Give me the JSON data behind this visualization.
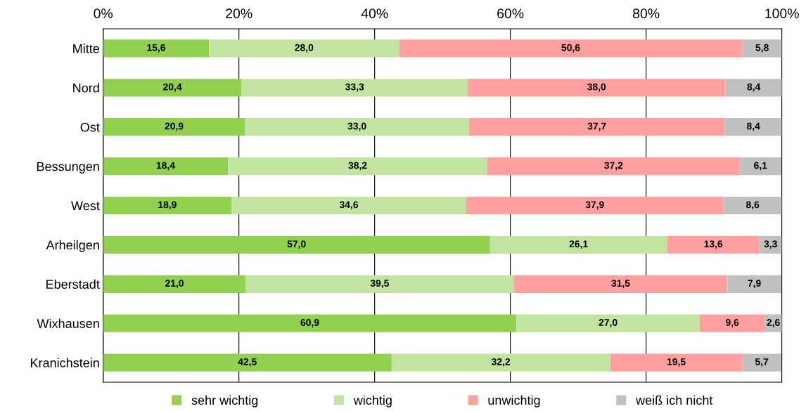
{
  "chart_data": {
    "type": "bar",
    "orientation": "horizontal",
    "stacked": true,
    "categories": [
      "Mitte",
      "Nord",
      "Ost",
      "Bessungen",
      "West",
      "Arheilgen",
      "Eberstadt",
      "Wixhausen",
      "Kranichstein"
    ],
    "series": [
      {
        "name": "sehr wichtig",
        "color": "#92d050",
        "values": [
          15.6,
          20.4,
          20.9,
          18.4,
          18.9,
          57.0,
          21.0,
          60.9,
          42.5
        ]
      },
      {
        "name": "wichtig",
        "color": "#c3e4a0",
        "values": [
          28.0,
          33.3,
          33.0,
          38.2,
          34.6,
          26.1,
          39.5,
          27.0,
          32.2
        ]
      },
      {
        "name": "unwichtig",
        "color": "#ff9f9f",
        "values": [
          50.6,
          38.0,
          37.7,
          37.2,
          37.9,
          13.6,
          31.5,
          9.6,
          19.5
        ]
      },
      {
        "name": "weiß ich nicht",
        "color": "#c0c0c0",
        "values": [
          5.8,
          8.4,
          8.4,
          6.1,
          8.6,
          3.3,
          7.9,
          2.6,
          5.7
        ]
      }
    ],
    "value_labels": [
      [
        "15,6",
        "20,4",
        "20,9",
        "18,4",
        "18,9",
        "57,0",
        "21,0",
        "60,9",
        "42,5"
      ],
      [
        "28,0",
        "33,3",
        "33,0",
        "38,2",
        "34,6",
        "26,1",
        "39,5",
        "27,0",
        "32,2"
      ],
      [
        "50,6",
        "38,0",
        "37,7",
        "37,2",
        "37,9",
        "13,6",
        "31,5",
        "9,6",
        "19,5"
      ],
      [
        "5,8",
        "8,4",
        "8,4",
        "6,1",
        "8,6",
        "3,3",
        "7,9",
        "2,6",
        "5,7"
      ]
    ],
    "xlim": [
      0,
      100
    ],
    "xticks": [
      {
        "value": 0,
        "label": "0%"
      },
      {
        "value": 20,
        "label": "20%"
      },
      {
        "value": 40,
        "label": "40%"
      },
      {
        "value": 60,
        "label": "60%"
      },
      {
        "value": 80,
        "label": "80%"
      },
      {
        "value": 100,
        "label": "100%"
      }
    ],
    "grid": "x",
    "legend": "bottom"
  }
}
